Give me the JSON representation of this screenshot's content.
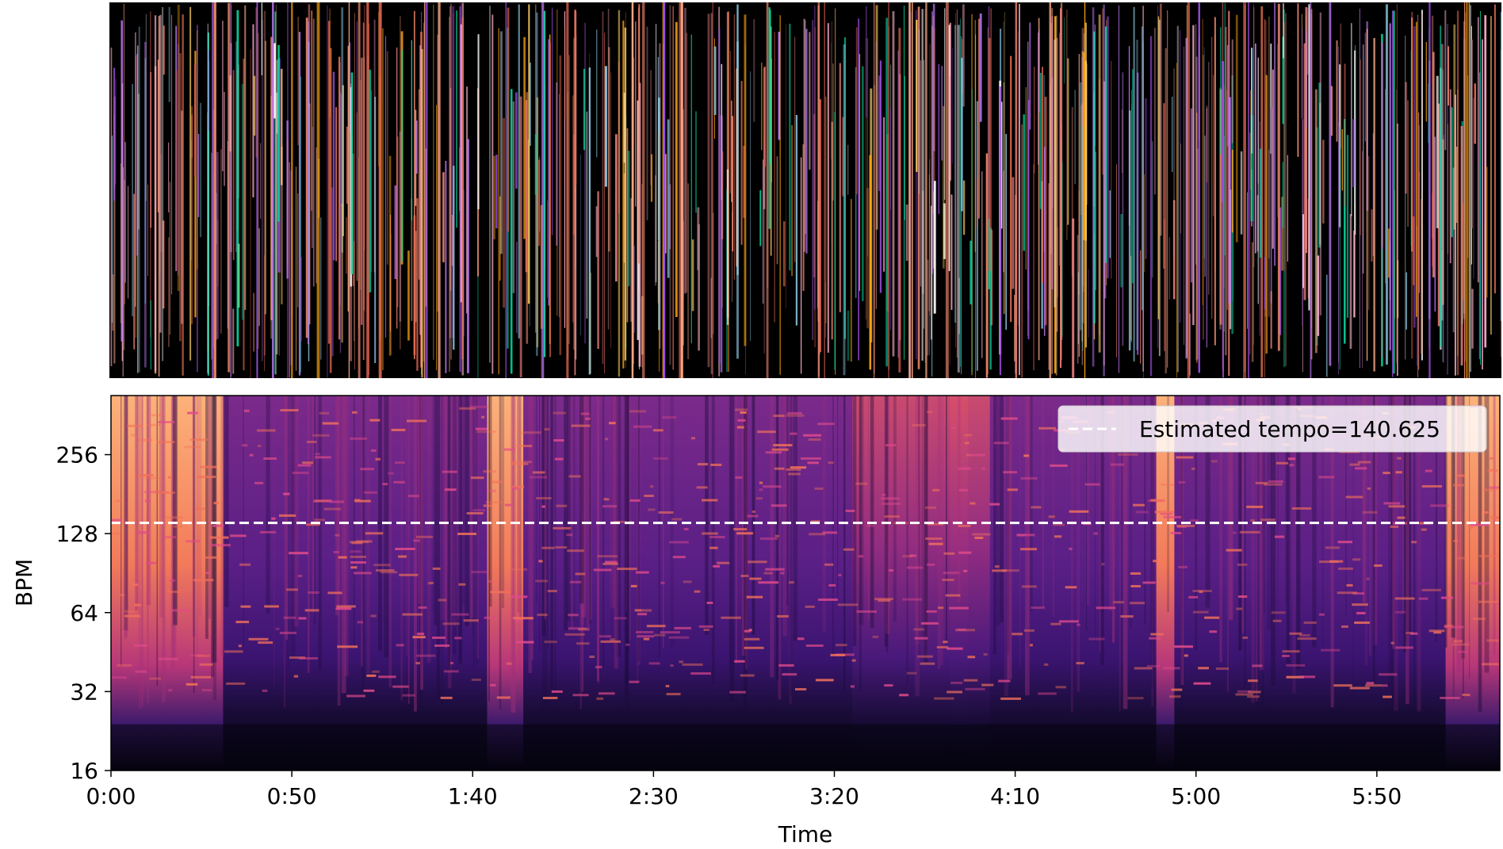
{
  "chart_data": [
    {
      "type": "heatmap",
      "panel": "top",
      "description_visible": false,
      "colormap": "multicolor on black",
      "xlabel": "",
      "ylabel": "",
      "x_tick_labels": [],
      "y_tick_labels": []
    },
    {
      "type": "heatmap",
      "panel": "bottom",
      "colormap": "magma",
      "xlabel": "Time",
      "ylabel": "BPM",
      "y_scale": "log2",
      "ylim": [
        16,
        430
      ],
      "xlim_seconds": [
        0,
        384
      ],
      "x_ticks": [
        {
          "seconds": 0,
          "label": "0:00"
        },
        {
          "seconds": 50,
          "label": "0:50"
        },
        {
          "seconds": 100,
          "label": "1:40"
        },
        {
          "seconds": 150,
          "label": "2:30"
        },
        {
          "seconds": 200,
          "label": "3:20"
        },
        {
          "seconds": 250,
          "label": "4:10"
        },
        {
          "seconds": 300,
          "label": "5:00"
        },
        {
          "seconds": 350,
          "label": "5:50"
        }
      ],
      "y_ticks": [
        {
          "value": 16,
          "label": "16"
        },
        {
          "value": 32,
          "label": "32"
        },
        {
          "value": 64,
          "label": "64"
        },
        {
          "value": 128,
          "label": "128"
        },
        {
          "value": 256,
          "label": "256"
        }
      ],
      "series": [
        {
          "name": "Estimated tempo=140.625",
          "type": "hline",
          "value": 140.625,
          "style": "dashed",
          "color": "#ffffff"
        }
      ],
      "bright_segments_seconds": [
        [
          0,
          31
        ],
        [
          104,
          114
        ],
        [
          369,
          384
        ],
        [
          289,
          294
        ]
      ],
      "legend": {
        "placement": "top-right",
        "label": "Estimated tempo=140.625"
      }
    }
  ]
}
